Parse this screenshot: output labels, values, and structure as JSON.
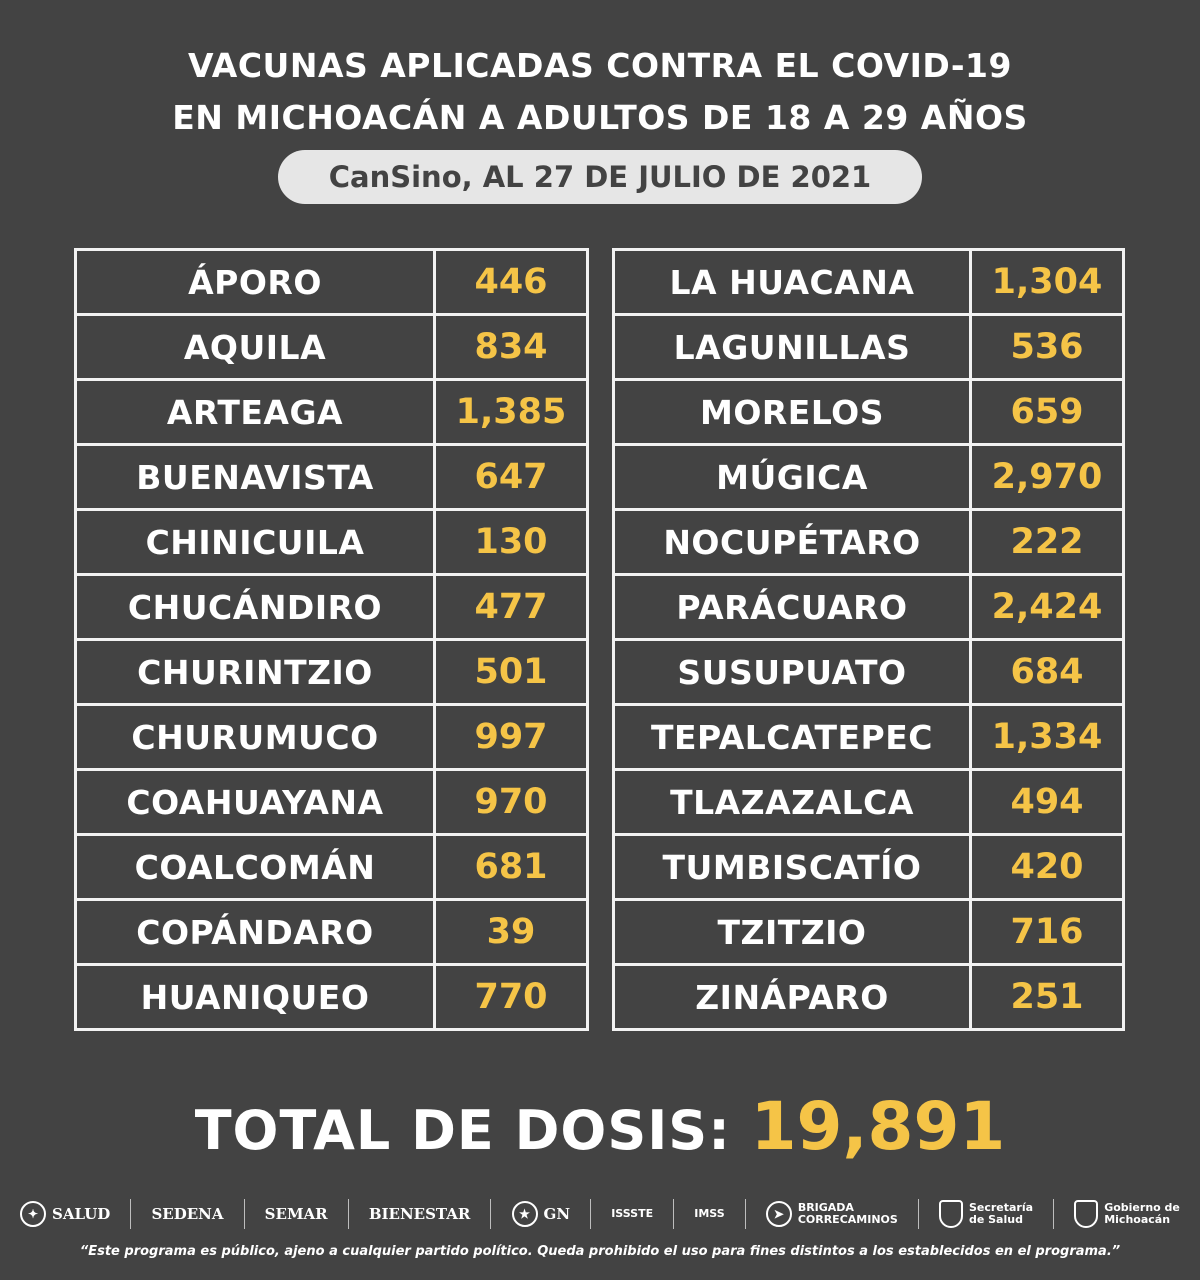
{
  "header": {
    "line1_a": "VACUNAS APLICADAS ",
    "line1_b": "CONTRA EL COVID-19",
    "line2": "EN MICHOACÁN A ADULTOS DE 18 A 29 AÑOS",
    "subtitle": "CanSino, AL 27 DE JULIO DE 2021"
  },
  "left_table": [
    {
      "name": "ÁPORO",
      "value": "446"
    },
    {
      "name": "AQUILA",
      "value": "834"
    },
    {
      "name": "ARTEAGA",
      "value": "1,385"
    },
    {
      "name": "BUENAVISTA",
      "value": "647"
    },
    {
      "name": "CHINICUILA",
      "value": "130"
    },
    {
      "name": "CHUCÁNDIRO",
      "value": "477"
    },
    {
      "name": "CHURINTZIO",
      "value": "501"
    },
    {
      "name": "CHURUMUCO",
      "value": "997"
    },
    {
      "name": "COAHUAYANA",
      "value": "970"
    },
    {
      "name": "COALCOMÁN",
      "value": "681"
    },
    {
      "name": "COPÁNDARO",
      "value": "39"
    },
    {
      "name": "HUANIQUEO",
      "value": "770"
    }
  ],
  "right_table": [
    {
      "name": "LA HUACANA",
      "value": "1,304"
    },
    {
      "name": "LAGUNILLAS",
      "value": "536"
    },
    {
      "name": "MORELOS",
      "value": "659"
    },
    {
      "name": "MÚGICA",
      "value": "2,970"
    },
    {
      "name": "NOCUPÉTARO",
      "value": "222"
    },
    {
      "name": "PARÁCUARO",
      "value": "2,424"
    },
    {
      "name": "SUSUPUATO",
      "value": "684"
    },
    {
      "name": "TEPALCATEPEC",
      "value": "1,334"
    },
    {
      "name": "TLAZAZALCA",
      "value": "494"
    },
    {
      "name": "TUMBISCATÍO",
      "value": "420"
    },
    {
      "name": "TZITZIO",
      "value": "716"
    },
    {
      "name": "ZINÁPARO",
      "value": "251"
    }
  ],
  "total": {
    "label": "TOTAL DE DOSIS: ",
    "value": "19,891"
  },
  "logos": {
    "salud": "SALUD",
    "sedena": "SEDENA",
    "semar": "SEMAR",
    "bienestar": "BIENESTAR",
    "gn": "GN",
    "issste": "ISSSTE",
    "imss": "IMSS",
    "brigada_1": "BRIGADA",
    "brigada_2": "CORRECAMINOS",
    "secretaria_1": "Secretaría",
    "secretaria_2": "de Salud",
    "gobierno_1": "Gobierno de",
    "gobierno_2": "Michoacán"
  },
  "colors": {
    "background": "#434343",
    "accent": "#f5c447",
    "pill": "#e6e6e6"
  },
  "disclaimer": "“Este programa es público, ajeno a cualquier partido político. Queda prohibido el uso para fines distintos a los establecidos en el programa.”"
}
